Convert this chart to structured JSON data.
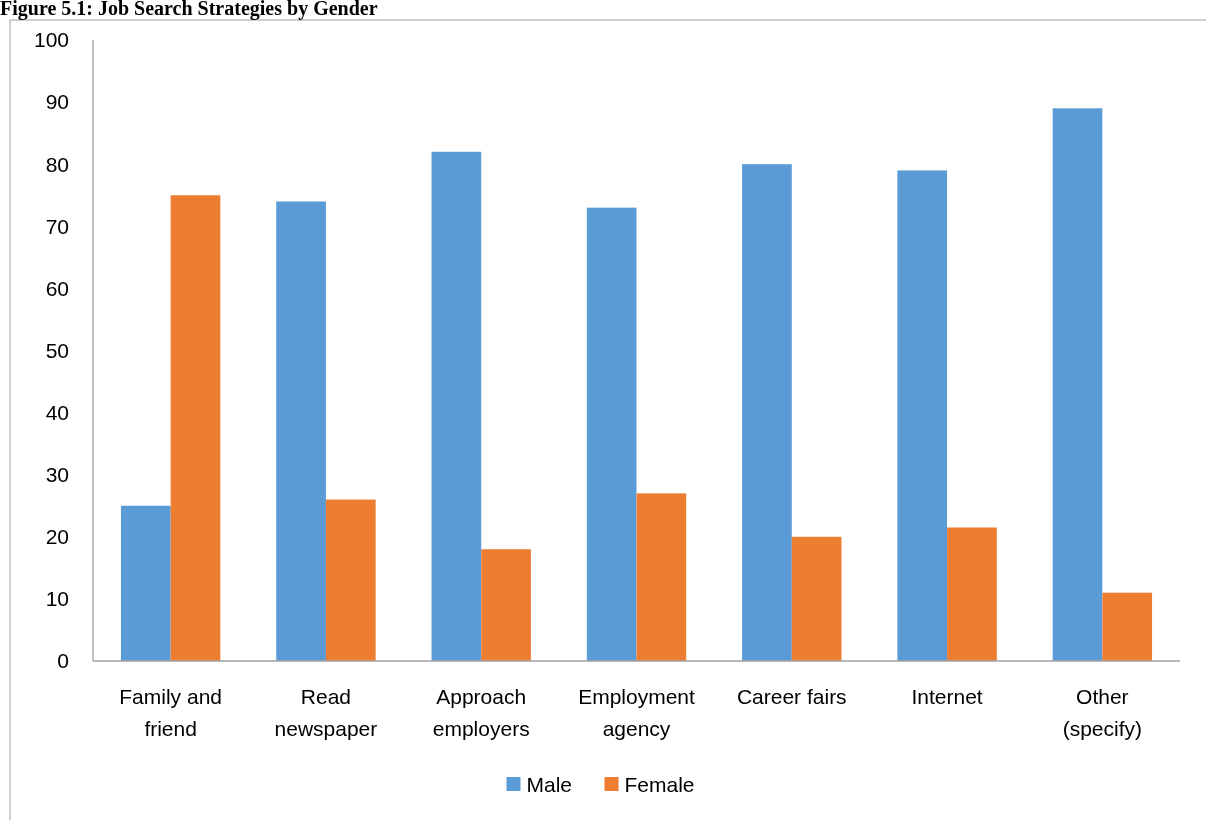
{
  "chart_data": {
    "type": "bar",
    "title": "Figure 5.1: Job Search Strategies by Gender",
    "categories": [
      "Family and friend",
      "Read newspaper",
      "Approach employers",
      "Employment agency",
      "Career fairs",
      "Internet",
      "Other (specify)"
    ],
    "series": [
      {
        "name": "Male",
        "color": "#5b9bd5",
        "values": [
          25,
          74,
          82,
          73,
          80,
          79,
          89
        ]
      },
      {
        "name": "Female",
        "color": "#ed7d31",
        "values": [
          75,
          26,
          18,
          27,
          20,
          21.5,
          11
        ]
      }
    ],
    "ylim": [
      0,
      100
    ],
    "yticks": [
      0,
      10,
      20,
      30,
      40,
      50,
      60,
      70,
      80,
      90,
      100
    ],
    "grid": false,
    "legend": "bottom"
  }
}
